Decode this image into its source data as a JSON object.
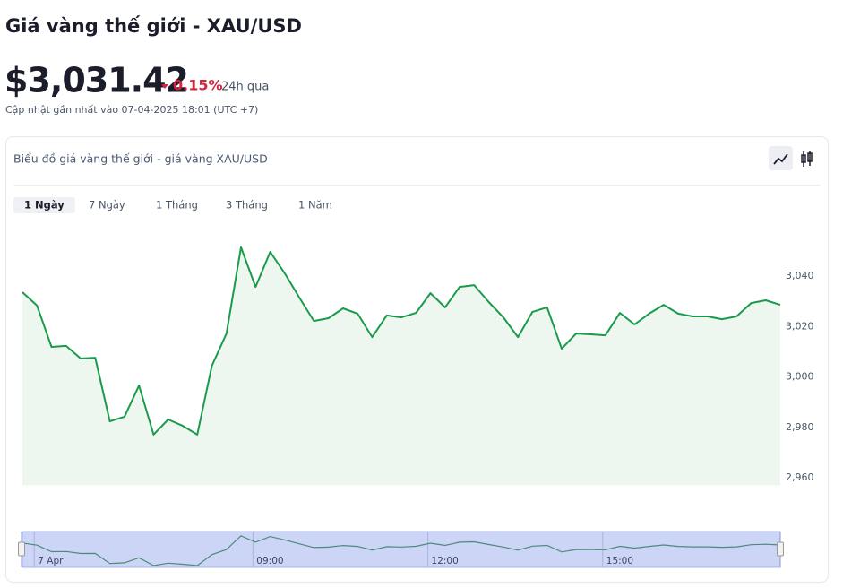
{
  "header": {
    "title": "Giá vàng thế giới - XAU/USD",
    "price": "$3,031.42",
    "change": "0.15%",
    "period": "24h qua",
    "updated": "Cập nhật gần nhất vào 07-04-2025 18:01 (UTC +7)"
  },
  "card": {
    "title": "Biểu đồ giá vàng thế giới - giá vàng XAU/USD",
    "tabs": [
      "1 Ngày",
      "7 Ngày",
      "1 Tháng",
      "3 Tháng",
      "1 Năm"
    ],
    "active_tab": 0
  },
  "chart_data": {
    "type": "area",
    "color": "#1a9b4b",
    "fill": "#edf7f0",
    "categories": [
      null,
      "7 Apr",
      null,
      null,
      null,
      null,
      null,
      null,
      null,
      null,
      null,
      null,
      null,
      null,
      null,
      null,
      "09:00",
      null,
      null,
      null,
      null,
      null,
      null,
      null,
      null,
      null,
      null,
      null,
      "12:00",
      null,
      null,
      null,
      null,
      null,
      null,
      null,
      null,
      null,
      null,
      null,
      "15:00",
      null,
      null,
      null,
      null,
      null,
      null,
      null,
      null,
      null,
      null,
      null,
      null
    ],
    "values": [
      3033.6,
      3028.3,
      3011.9,
      3012.3,
      3007.3,
      3007.6,
      2982.4,
      2984.2,
      2996.6,
      2977.1,
      2983.1,
      2980.6,
      2977.1,
      3004.4,
      3017.2,
      3051.4,
      3035.7,
      3049.6,
      3041.1,
      3031.5,
      3022.2,
      3023.3,
      3027.2,
      3025.1,
      3015.8,
      3024.4,
      3023.6,
      3025.4,
      3033.2,
      3027.6,
      3035.7,
      3036.4,
      3029.7,
      3023.6,
      3015.8,
      3025.8,
      3027.6,
      3011.2,
      3017.2,
      3016.9,
      3016.5,
      3025.4,
      3020.8,
      3025.1,
      3028.6,
      3025.1,
      3024.0,
      3024.0,
      3022.9,
      3024.0,
      3029.3,
      3030.4,
      3028.6
    ],
    "ylim": [
      2957,
      3060
    ],
    "yticks": [
      {
        "value": 2960,
        "label": "2,960"
      },
      {
        "value": 2980,
        "label": "2,980"
      },
      {
        "value": 3000,
        "label": "3,000"
      },
      {
        "value": 3020,
        "label": "3,020"
      },
      {
        "value": 3040,
        "label": "3,040"
      }
    ],
    "grid": false
  }
}
